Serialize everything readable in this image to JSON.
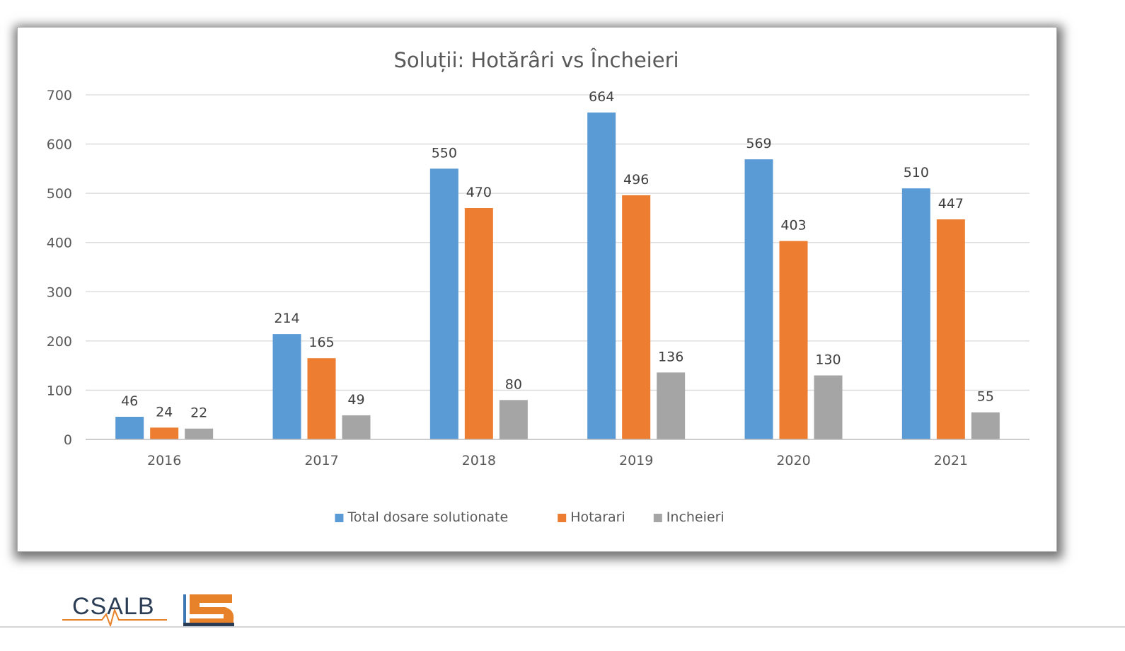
{
  "chart_data": {
    "type": "bar",
    "title": "Soluții: Hotărâri vs Încheieri",
    "categories": [
      "2016",
      "2017",
      "2018",
      "2019",
      "2020",
      "2021"
    ],
    "series": [
      {
        "name": "Total dosare solutionate",
        "color": "#5b9bd5",
        "values": [
          46,
          214,
          550,
          664,
          569,
          510
        ]
      },
      {
        "name": "Hotarari",
        "color": "#ed7d31",
        "values": [
          24,
          165,
          470,
          496,
          403,
          447
        ]
      },
      {
        "name": "Incheieri",
        "color": "#a5a5a5",
        "values": [
          22,
          49,
          80,
          136,
          130,
          55
        ]
      }
    ],
    "ylim": [
      0,
      700
    ],
    "yticks": [
      0,
      100,
      200,
      300,
      400,
      500,
      600,
      700
    ],
    "grid": true,
    "legend_position": "bottom",
    "data_labels": true
  },
  "logo": {
    "text": "CSALB",
    "brand_colors": {
      "navy": "#2a3d55",
      "orange": "#e8822a",
      "blue": "#3b78b5"
    }
  }
}
